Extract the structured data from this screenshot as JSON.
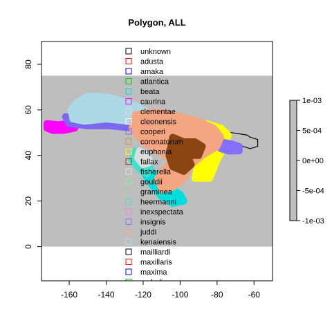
{
  "chart_data": {
    "type": "map",
    "title": "Polygon, ALL",
    "xlabel": "",
    "ylabel": "",
    "xlim": [
      -175,
      -50
    ],
    "ylim": [
      -15,
      90
    ],
    "x_ticks": [
      -160,
      -140,
      -120,
      -100,
      -80,
      -60
    ],
    "y_ticks": [
      0,
      20,
      40,
      60,
      80
    ],
    "background_band": {
      "y_range": [
        0,
        75
      ],
      "color": "#bebebe"
    },
    "legend": {
      "position": "top-center, clipped at bottom of plot",
      "entries": [
        {
          "label": "unknown",
          "color": "#000000"
        },
        {
          "label": "adusta",
          "color": "#ff0000"
        },
        {
          "label": "amaka",
          "color": "#0000ff"
        },
        {
          "label": "atlantica",
          "color": "#00cc00"
        },
        {
          "label": "beata",
          "color": "#00dddd"
        },
        {
          "label": "caurina",
          "color": "#ff00ff"
        },
        {
          "label": "clementae",
          "color": "#dddddd"
        },
        {
          "label": "cleonensis",
          "color": "#ffffff"
        },
        {
          "label": "cooperi",
          "color": "#7b68ee"
        },
        {
          "label": "coronatorum",
          "color": "#cc9933"
        },
        {
          "label": "euphonia",
          "color": "#ffff00"
        },
        {
          "label": "fallax",
          "color": "#8b4513"
        },
        {
          "label": "fisherella",
          "color": "#e0e0e0"
        },
        {
          "label": "gouldii",
          "color": "#90ee90"
        },
        {
          "label": "graminea",
          "color": "#b0c4b0"
        },
        {
          "label": "heermanni",
          "color": "#40e0d0"
        },
        {
          "label": "inexspectata",
          "color": "#ee82ee"
        },
        {
          "label": "insignis",
          "color": "#8470ff"
        },
        {
          "label": "juddi",
          "color": "#f4a582"
        },
        {
          "label": "kenaiensis",
          "color": "#add8e6"
        },
        {
          "label": "mailliardi",
          "color": "#000000"
        },
        {
          "label": "maxillaris",
          "color": "#ff0000"
        },
        {
          "label": "maxima",
          "color": "#0000ff"
        },
        {
          "label": "melodia",
          "color": "#00cc00"
        }
      ]
    },
    "colorbar": {
      "ticks": [
        "1e-03",
        "5e-04",
        "0e+00",
        "-5e-04",
        "-1e-03"
      ],
      "fill": "#bebebe"
    },
    "shapes": [
      {
        "name": "caurina",
        "color": "#ff00ff",
        "kind": "fill",
        "points": [
          [
            -172,
            54
          ],
          [
            -166,
            53.5
          ],
          [
            -160,
            54
          ],
          [
            -157,
            55
          ],
          [
            -157,
            52
          ],
          [
            -163,
            51
          ],
          [
            -169,
            51
          ],
          [
            -172,
            52
          ]
        ]
      },
      {
        "name": "cooperi",
        "color": "#7b68ee",
        "kind": "fill",
        "points": [
          [
            -162,
            57
          ],
          [
            -154,
            56
          ],
          [
            -142,
            56
          ],
          [
            -130,
            56
          ],
          [
            -126,
            56
          ],
          [
            -126,
            52
          ],
          [
            -138,
            53
          ],
          [
            -150,
            53
          ],
          [
            -160,
            54
          ]
        ]
      },
      {
        "name": "kenaiensis",
        "color": "#add8e6",
        "kind": "fill",
        "points": [
          [
            -159,
            60
          ],
          [
            -156,
            63
          ],
          [
            -150,
            66
          ],
          [
            -144,
            66
          ],
          [
            -136,
            65
          ],
          [
            -128,
            63
          ],
          [
            -122,
            61
          ],
          [
            -118,
            59
          ],
          [
            -120,
            55
          ],
          [
            -128,
            55
          ],
          [
            -140,
            56
          ],
          [
            -152,
            55
          ],
          [
            -158,
            56
          ]
        ]
      },
      {
        "name": "unknown",
        "color": "#000000",
        "kind": "line",
        "points": [
          [
            -82,
            51
          ],
          [
            -72,
            50
          ],
          [
            -64,
            49
          ],
          [
            -62,
            48
          ],
          [
            -58,
            47
          ],
          [
            -58,
            44
          ],
          [
            -62,
            43
          ],
          [
            -66,
            44
          ],
          [
            -70,
            44
          ]
        ]
      },
      {
        "name": "beata",
        "color": "#00dddd",
        "kind": "fill",
        "points": [
          [
            -118,
            35
          ],
          [
            -112,
            30
          ],
          [
            -106,
            26
          ],
          [
            -100,
            23
          ],
          [
            -98,
            20
          ],
          [
            -104,
            19
          ],
          [
            -110,
            22
          ],
          [
            -116,
            28
          ],
          [
            -120,
            33
          ]
        ]
      },
      {
        "name": "euphonia",
        "color": "#ffff00",
        "kind": "fill",
        "points": [
          [
            -96,
            53
          ],
          [
            -86,
            54
          ],
          [
            -78,
            52
          ],
          [
            -74,
            49
          ],
          [
            -76,
            44
          ],
          [
            -80,
            38
          ],
          [
            -84,
            30
          ],
          [
            -92,
            30
          ],
          [
            -90,
            37
          ],
          [
            -84,
            43
          ],
          [
            -90,
            47
          ],
          [
            -98,
            50
          ]
        ]
      },
      {
        "name": "insignis",
        "color": "#8470ff",
        "kind": "fill",
        "points": [
          [
            -78,
            46
          ],
          [
            -72,
            45
          ],
          [
            -68,
            44
          ],
          [
            -68,
            42
          ],
          [
            -74,
            42
          ],
          [
            -78,
            43
          ]
        ]
      },
      {
        "name": "juddi",
        "color": "#f4a582",
        "kind": "fill",
        "points": [
          [
            -124,
            58
          ],
          [
            -112,
            59
          ],
          [
            -100,
            57
          ],
          [
            -90,
            55
          ],
          [
            -82,
            52
          ],
          [
            -78,
            48
          ],
          [
            -80,
            44
          ],
          [
            -88,
            40
          ],
          [
            -94,
            36
          ],
          [
            -98,
            30
          ],
          [
            -104,
            26
          ],
          [
            -110,
            25
          ],
          [
            -112,
            30
          ],
          [
            -108,
            34
          ],
          [
            -104,
            38
          ],
          [
            -112,
            42
          ],
          [
            -120,
            46
          ],
          [
            -126,
            52
          ]
        ]
      },
      {
        "name": "fallax",
        "color": "#8b4513",
        "kind": "fill",
        "points": [
          [
            -104,
            48
          ],
          [
            -98,
            46
          ],
          [
            -92,
            46
          ],
          [
            -88,
            44
          ],
          [
            -90,
            40
          ],
          [
            -96,
            40
          ],
          [
            -94,
            36
          ],
          [
            -98,
            33
          ],
          [
            -104,
            35
          ],
          [
            -106,
            40
          ]
        ]
      },
      {
        "name": "heermanni",
        "color": "#40e0d0",
        "kind": "fill",
        "points": [
          [
            -124,
            42
          ],
          [
            -120,
            40
          ],
          [
            -116,
            36
          ],
          [
            -118,
            32
          ],
          [
            -122,
            34
          ],
          [
            -126,
            38
          ]
        ]
      },
      {
        "name": "clementae",
        "color": "#dddddd",
        "kind": "fill",
        "points": [
          [
            -122,
            42
          ],
          [
            -118,
            40
          ],
          [
            -116,
            37
          ],
          [
            -120,
            36
          ],
          [
            -123,
            39
          ]
        ]
      }
    ]
  }
}
